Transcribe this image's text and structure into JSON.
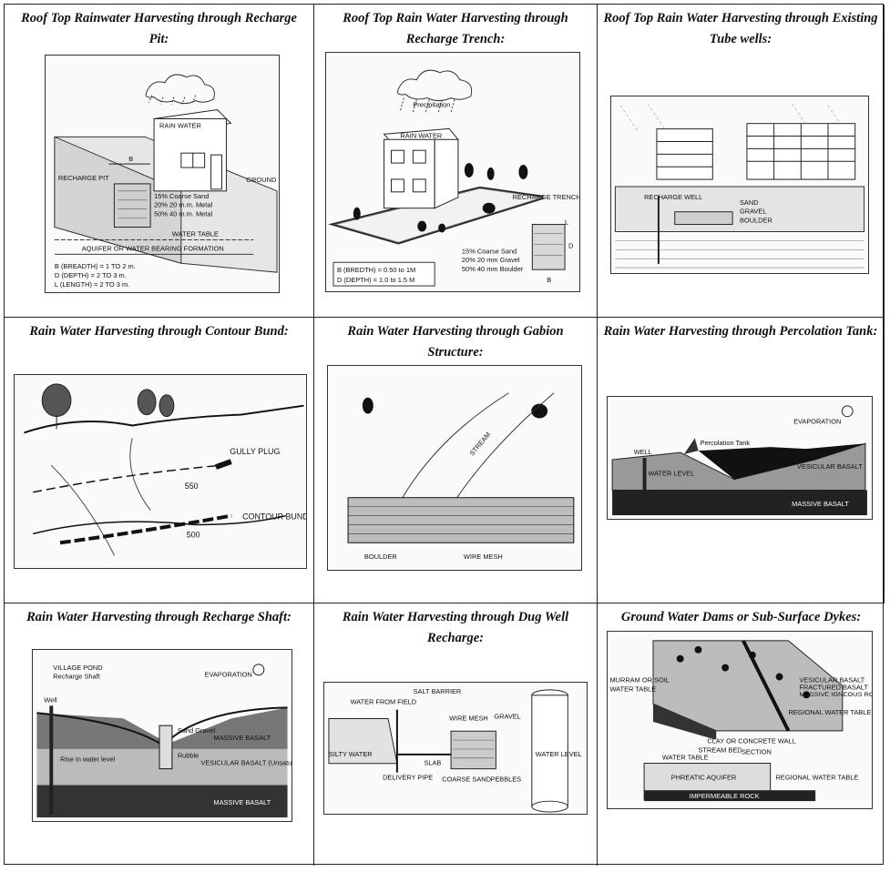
{
  "cells": [
    {
      "title": "Roof Top Rainwater Harvesting through Recharge Pit:",
      "labels": {
        "rain_water": "RAIN WATER",
        "recharge_pit": "RECHARGE PIT",
        "ground_level": "GROUND LEVEL",
        "coarse_sand": "15% Coarse Sand",
        "metal_20": "20% 20 m.m. Metal",
        "metal_40": "50% 40 m.m. Metal",
        "water_table": "WATER TABLE",
        "aquifer": "AQUIFER OR WATER BEARING FORMATION",
        "dim_b_letter": "B",
        "breadth": "B (BREADTH) = 1 TO 2 m.",
        "depth": "D (DEPTH)    = 2 TO 3 m.",
        "length": "L (LENGTH)  = 2 TO 3 m."
      }
    },
    {
      "title": "Roof Top Rain Water Harvesting through Recharge Trench:",
      "labels": {
        "precipitation": "Precipitation",
        "rain_water": "RAIN WATER",
        "recharge_trench": "RECHARGE TRENCH",
        "coarse_sand": "15% Coarse Sand",
        "gravel": "20% 20 mm Gravel",
        "boulder": "50% 40 mm Boulder",
        "breadth": "B (BREDTH) = 0.50 to 1M",
        "depth": "D (DEPTH)   = 1.0 to 1.5 M",
        "dim_l": "L",
        "dim_d": "D",
        "dim_b": "B"
      }
    },
    {
      "title": "Roof Top Rain Water Harvesting through Existing Tube wells:",
      "labels": {
        "recharge_well": "RECHARGE WELL",
        "sand": "SAND",
        "gravel": "GRAVEL",
        "boulder": "BOULDER"
      }
    },
    {
      "title": "Rain Water Harvesting through Contour Bund:",
      "labels": {
        "gully_plug": "GULLY PLUG",
        "contour_550": "550",
        "contour_bund": "CONTOUR BUND",
        "contour_500": "500"
      }
    },
    {
      "title": "Rain Water Harvesting through Gabion Structure:",
      "labels": {
        "stream": "STREAM",
        "boulder": "BOULDER",
        "wire_mesh": "WIRE MESH"
      }
    },
    {
      "title": "Rain Water Harvesting through Percolation Tank:",
      "labels": {
        "evaporation": "EVAPORATION",
        "well": "WELL",
        "percolation_tank": "Percolation Tank",
        "vesicular_basalt": "VESICULAR BASALT",
        "water_level": "WATER LEVEL",
        "massive_basalt": "MASSIVE BASALT"
      }
    },
    {
      "title": "Rain Water Harvesting through Recharge Shaft:",
      "labels": {
        "village_pond": "VILLAGE POND",
        "recharge_shaft": "Recharge Shaft",
        "evaporation": "EVAPORATION",
        "well": "Well",
        "sand_gravel": "Sand Gravel",
        "massive_basalt_top": "MASSIVE BASALT",
        "rise_in_water_level": "Rise in water level",
        "rubble": "Rubble",
        "vesicular_basalt": "VESICULAR BASALT (Unsaturated)",
        "massive_basalt_bottom": "MASSIVE BASALT"
      }
    },
    {
      "title": "Rain Water Harvesting through Dug Well Recharge:",
      "labels": {
        "salt_barrier": "SALT BARRIER",
        "water_from_field": "WATER FROM FIELD",
        "wire_mesh": "WIRE MESH",
        "gravel": "GRAVEL",
        "silty_water": "SILTY WATER",
        "slab": "SLAB",
        "delivery_pipe": "DELIVERY PIPE",
        "coarse_sand": "COARSE SAND",
        "pebbles": "PEBBLES",
        "water_level": "WATER LEVEL"
      }
    },
    {
      "title": "Ground Water Dams or Sub-Surface Dykes:",
      "labels": {
        "murram": "MURRAM OR SOIL",
        "water_table": "WATER TABLE",
        "vesicular_basalt": "VESICULAR BASALT",
        "fractured_basalt": "FRACTURED BASALT",
        "massive_igneous": "MASSIVE IGNEOUS ROCKS",
        "regional_water_table": "REGIONAL WATER TABLE",
        "clay_wall": "CLAY OR CONCRETE WALL",
        "stream_bed": "STREAM BED",
        "section": "SECTION",
        "water_table_2": "WATER TABLE",
        "phreatic_aquifer": "PHREATIC AQUIFER",
        "regional_water_table_2": "REGIONAL WATER TABLE",
        "impermeable_rock": "IMPERMEABLE ROCK"
      }
    }
  ]
}
